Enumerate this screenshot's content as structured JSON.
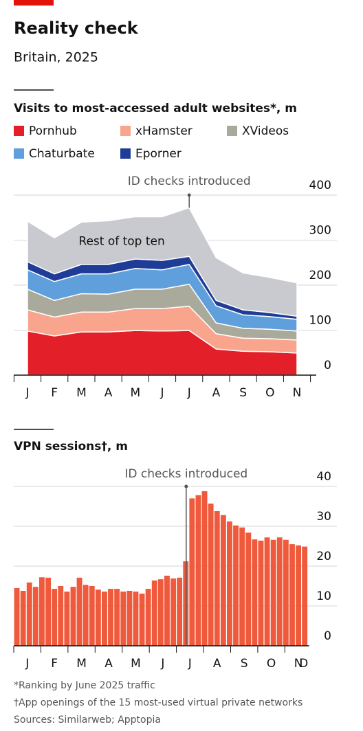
{
  "header": {
    "title": "Reality check",
    "subtitle": "Britain, 2025"
  },
  "chart_data": [
    {
      "type": "stacked-area",
      "title": "Visits to most-accessed adult websites*, m",
      "annotation": "ID checks introduced",
      "categories": [
        "J",
        "F",
        "M",
        "A",
        "M",
        "J",
        "J",
        "A",
        "S",
        "O",
        "N"
      ],
      "series": [
        {
          "name": "Pornhub",
          "color": "#e3202a",
          "values": [
            98,
            87,
            96,
            96,
            99,
            98,
            99,
            58,
            53,
            52,
            49
          ]
        },
        {
          "name": "xHamster",
          "color": "#f9a58e",
          "values": [
            47,
            42,
            44,
            44,
            49,
            50,
            54,
            34,
            29,
            29,
            29
          ]
        },
        {
          "name": "XVideos",
          "color": "#a9aa9b",
          "values": [
            46,
            37,
            41,
            40,
            43,
            43,
            49,
            24,
            22,
            21,
            20
          ]
        },
        {
          "name": "Chaturbate",
          "color": "#5f9fdc",
          "values": [
            43,
            42,
            44,
            45,
            46,
            43,
            44,
            38,
            30,
            28,
            26
          ]
        },
        {
          "name": "Eporner",
          "color": "#1f3d97",
          "values": [
            18,
            17,
            21,
            21,
            21,
            21,
            18,
            12,
            11,
            9,
            7
          ]
        },
        {
          "name": "Rest of top ten",
          "color": "#c9cacf",
          "values": [
            90,
            80,
            94,
            97,
            94,
            97,
            108,
            95,
            82,
            78,
            74
          ]
        }
      ],
      "ylim": [
        0,
        400
      ],
      "yticks": [
        0,
        100,
        200,
        300,
        400
      ],
      "grid": true
    },
    {
      "type": "bar",
      "title": "VPN sessions†, m",
      "annotation": "ID checks introduced",
      "color": "#f05a3c",
      "month_labels": [
        "J",
        "F",
        "M",
        "A",
        "M",
        "J",
        "J",
        "A",
        "S",
        "O",
        "N",
        "D"
      ],
      "values": [
        14.5,
        13.8,
        15.9,
        14.8,
        17.2,
        17.1,
        14.3,
        15,
        13.6,
        14.8,
        17.1,
        15.3,
        15,
        14.1,
        13.6,
        14.3,
        14.3,
        13.6,
        13.8,
        13.6,
        13.1,
        14.3,
        16.4,
        16.7,
        17.6,
        16.9,
        17.1,
        21.2,
        37,
        37.8,
        38.8,
        35.7,
        33.8,
        32.8,
        31.2,
        30.2,
        29.7,
        28.4,
        26.7,
        26.4,
        27.2,
        26.6,
        27.2,
        26.6,
        25.5,
        25.2,
        24.9
      ],
      "ylim": [
        0,
        40
      ],
      "yticks": [
        0,
        10,
        20,
        30,
        40
      ],
      "grid": true
    }
  ],
  "footnotes": [
    "*Ranking by June 2025 traffic",
    "†App openings of the 15 most-used virtual private networks",
    "Sources: Similarweb; Apptopia"
  ]
}
